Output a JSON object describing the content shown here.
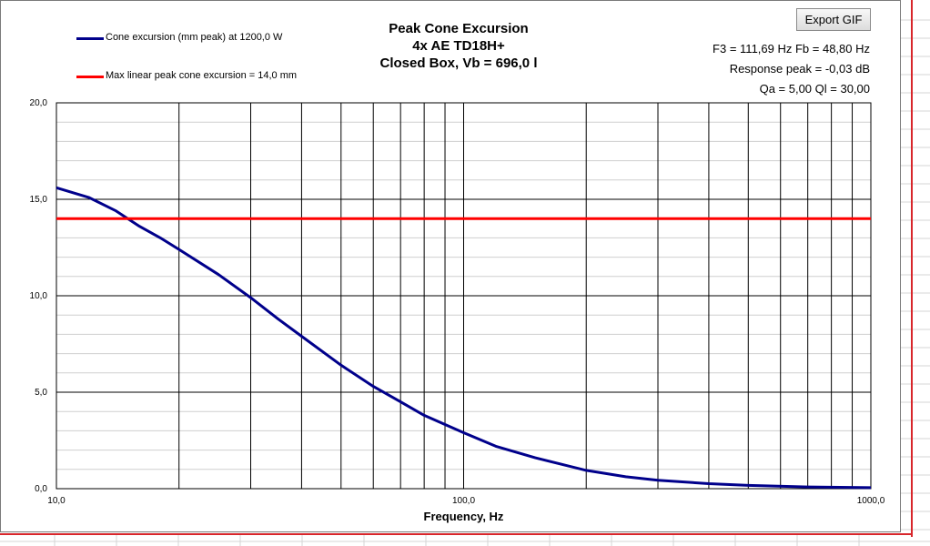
{
  "title_lines": [
    "Peak Cone Excursion",
    "4x AE TD18H+",
    "Closed Box, Vb = 696,0 l"
  ],
  "export_button": "Export GIF",
  "info_lines": [
    "F3 = 111,69 Hz  Fb = 48,80 Hz",
    "Response peak = -0,03 dB",
    "Qa = 5,00  Ql = 30,00"
  ],
  "legend": [
    {
      "label": "Cone excursion (mm peak) at 1200,0 W",
      "color": "#00008b"
    },
    {
      "label": "Max linear peak cone excursion = 14,0 mm",
      "color": "#ff0000"
    }
  ],
  "chart_data": {
    "type": "line",
    "xlabel": "Frequency, Hz",
    "ylabel": "",
    "x_scale": "log",
    "xlim": [
      10,
      1000
    ],
    "ylim": [
      0,
      20
    ],
    "x_tick_labels": [
      "10,0",
      "100,0",
      "1000,0"
    ],
    "y_tick_labels": [
      "0,0",
      "5,0",
      "10,0",
      "15,0",
      "20,0"
    ],
    "grid": true,
    "legend_position": "top-left",
    "series": [
      {
        "name": "Cone excursion (mm peak) at 1200,0 W",
        "color": "#00008b",
        "x": [
          10,
          12,
          14,
          16,
          18,
          20,
          25,
          30,
          35,
          40,
          50,
          60,
          70,
          80,
          100,
          120,
          150,
          200,
          250,
          300,
          400,
          500,
          700,
          1000
        ],
        "y": [
          15.6,
          15.1,
          14.4,
          13.6,
          13.0,
          12.4,
          11.1,
          9.9,
          8.8,
          7.9,
          6.4,
          5.3,
          4.5,
          3.8,
          2.9,
          2.2,
          1.6,
          0.95,
          0.62,
          0.44,
          0.26,
          0.17,
          0.09,
          0.05
        ]
      },
      {
        "name": "Max linear peak cone excursion = 14,0 mm",
        "color": "#ff0000",
        "x": [
          10,
          1000
        ],
        "y": [
          14,
          14
        ]
      }
    ]
  }
}
